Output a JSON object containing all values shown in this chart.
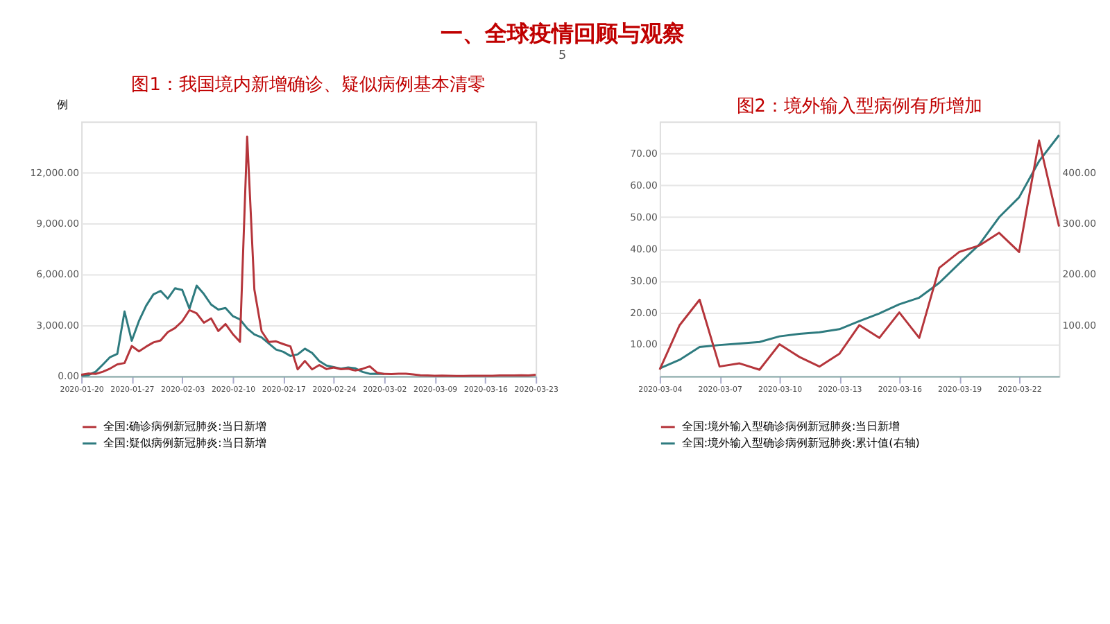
{
  "chart_data": [
    {
      "type": "line",
      "title": "图1：我国境内新增确诊、疑似病例基本清零",
      "ylabel": "例",
      "annotations": [
        "一、全球疫情回顾与观察"
      ],
      "grid": "y",
      "legend": "bottom",
      "marker": "none",
      "line_style": "solid",
      "x": [
        "2020-01-20",
        "2020-01-21",
        "2020-01-22",
        "2020-01-23",
        "2020-01-24",
        "2020-01-25",
        "2020-01-26",
        "2020-01-27",
        "2020-01-28",
        "2020-01-29",
        "2020-01-30",
        "2020-01-31",
        "2020-02-01",
        "2020-02-02",
        "2020-02-03",
        "2020-02-04",
        "2020-02-05",
        "2020-02-06",
        "2020-02-07",
        "2020-02-08",
        "2020-02-09",
        "2020-02-10",
        "2020-02-11",
        "2020-02-12",
        "2020-02-13",
        "2020-02-14",
        "2020-02-15",
        "2020-02-16",
        "2020-02-17",
        "2020-02-18",
        "2020-02-19",
        "2020-02-20",
        "2020-02-21",
        "2020-02-22",
        "2020-02-23",
        "2020-02-24",
        "2020-02-25",
        "2020-02-26",
        "2020-02-27",
        "2020-02-28",
        "2020-02-29",
        "2020-03-01",
        "2020-03-02",
        "2020-03-03",
        "2020-03-04",
        "2020-03-05",
        "2020-03-06",
        "2020-03-07",
        "2020-03-08",
        "2020-03-09",
        "2020-03-10",
        "2020-03-11",
        "2020-03-12",
        "2020-03-13",
        "2020-03-14",
        "2020-03-15",
        "2020-03-16",
        "2020-03-17",
        "2020-03-18",
        "2020-03-19",
        "2020-03-20",
        "2020-03-21",
        "2020-03-22",
        "2020-03-23"
      ],
      "xlim": [
        "2020-01-20",
        "2020-03-23"
      ],
      "xticks": [
        "2020-01-20",
        "2020-01-27",
        "2020-02-03",
        "2020-02-10",
        "2020-02-17",
        "2020-02-24",
        "2020-03-02",
        "2020-03-09",
        "2020-03-16",
        "2020-03-23"
      ],
      "ylim": [
        0,
        15000
      ],
      "yticks": [
        {
          "value": 0,
          "label": "0.00"
        },
        {
          "value": 3000,
          "label": "3,000.00"
        },
        {
          "value": 6000,
          "label": "6,000.00"
        },
        {
          "value": 9000,
          "label": "9,000.00"
        },
        {
          "value": 12000,
          "label": "12,000.00"
        }
      ],
      "series": [
        {
          "name": "全国:确诊病例新冠肺炎:当日新增",
          "color": "#b5353b",
          "values": [
            77,
            149,
            131,
            259,
            444,
            688,
            769,
            1771,
            1459,
            1737,
            1982,
            2102,
            2590,
            2829,
            3235,
            3887,
            3694,
            3143,
            3399,
            2656,
            3062,
            2478,
            2015,
            14108,
            5090,
            2641,
            2009,
            2048,
            1886,
            1749,
            394,
            889,
            397,
            648,
            409,
            508,
            406,
            433,
            327,
            427,
            573,
            202,
            125,
            119,
            139,
            143,
            99,
            44,
            40,
            19,
            24,
            15,
            8,
            11,
            20,
            16,
            21,
            13,
            34,
            39,
            41,
            46,
            39,
            78
          ]
        },
        {
          "name": "全国:疑似病例新冠肺炎:当日新增",
          "color": "#2e7b7f",
          "values": [
            27,
            60,
            257,
            680,
            1118,
            1309,
            3806,
            2077,
            3248,
            4148,
            4812,
            5019,
            4562,
            5173,
            5072,
            3971,
            5328,
            4833,
            4214,
            3916,
            4008,
            3536,
            3342,
            2807,
            2450,
            2277,
            1918,
            1563,
            1432,
            1185,
            1277,
            1614,
            1361,
            882,
            620,
            530,
            439,
            508,
            452,
            248,
            132,
            141,
            129,
            null,
            null,
            null,
            null,
            null,
            null,
            null,
            null,
            null,
            null,
            null,
            null,
            null,
            null,
            null,
            null,
            null,
            null,
            null,
            null,
            null
          ]
        }
      ]
    },
    {
      "type": "line",
      "title": "图2：境外输入型病例有所增加",
      "annotations": [
        "5"
      ],
      "grid": "y",
      "legend": "bottom",
      "marker": "none",
      "line_style": "solid",
      "x": [
        "2020-03-04",
        "2020-03-05",
        "2020-03-06",
        "2020-03-07",
        "2020-03-08",
        "2020-03-09",
        "2020-03-10",
        "2020-03-11",
        "2020-03-12",
        "2020-03-13",
        "2020-03-14",
        "2020-03-15",
        "2020-03-16",
        "2020-03-17",
        "2020-03-18",
        "2020-03-19",
        "2020-03-20",
        "2020-03-21",
        "2020-03-22",
        "2020-03-23",
        "2020-03-24"
      ],
      "xlim": [
        "2020-03-04",
        "2020-03-24"
      ],
      "xticks": [
        "2020-03-04",
        "2020-03-07",
        "2020-03-10",
        "2020-03-13",
        "2020-03-16",
        "2020-03-19",
        "2020-03-22"
      ],
      "ylim": [
        0,
        80
      ],
      "yticks": [
        {
          "value": 10,
          "label": "10.00"
        },
        {
          "value": 20,
          "label": "20.00"
        },
        {
          "value": 30,
          "label": "30.00"
        },
        {
          "value": 40,
          "label": "40.00"
        },
        {
          "value": 50,
          "label": "50.00"
        },
        {
          "value": 60,
          "label": "60.00"
        },
        {
          "value": 70,
          "label": "70.00"
        }
      ],
      "y2lim": [
        0,
        500
      ],
      "y2ticks": [
        {
          "value": 100,
          "label": "100.00"
        },
        {
          "value": 200,
          "label": "200.00"
        },
        {
          "value": 300,
          "label": "300.00"
        },
        {
          "value": 400,
          "label": "400.00"
        }
      ],
      "series": [
        {
          "name": "全国:境外输入型确诊病例新冠肺炎:当日新增",
          "color": "#b5353b",
          "values": [
            2,
            16,
            24,
            3,
            4,
            2,
            10,
            6,
            3,
            7,
            16,
            12,
            20,
            12,
            34,
            39,
            41,
            45,
            39,
            74,
            47
          ]
        },
        {
          "name": "全国:境外输入型确诊病例新冠肺炎:累计值(右轴)",
          "color": "#2e7b7f",
          "axis": "y2",
          "values": [
            15,
            32,
            57,
            61,
            64,
            67,
            78,
            83,
            86,
            92,
            108,
            123,
            141,
            154,
            183,
            221,
            258,
            312,
            351,
            422,
            473
          ]
        }
      ]
    }
  ]
}
